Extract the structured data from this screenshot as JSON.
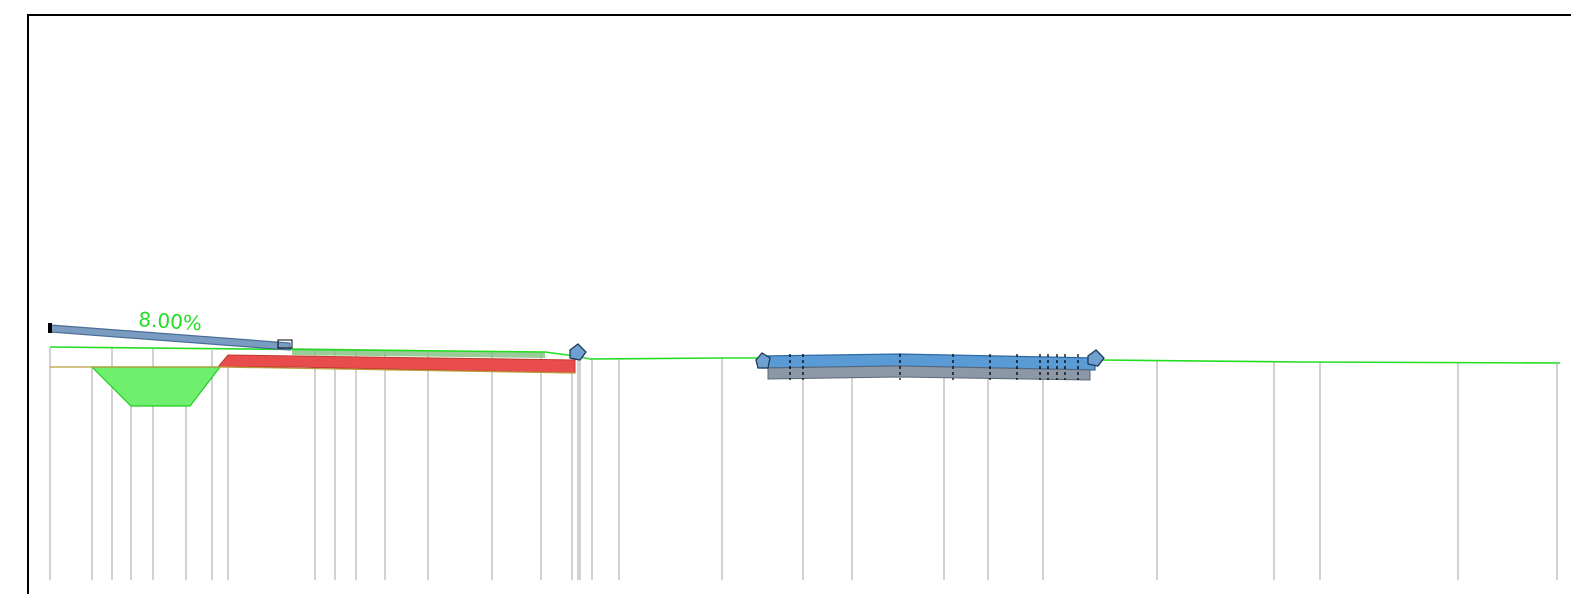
{
  "drawing": {
    "background": "#ffffff",
    "frame_color": "#000000",
    "stations_color": "#b5b5b5",
    "ground_color": "#22dd22",
    "pavement_color": "#5b9bd5",
    "fill_color": "#e84c4c",
    "ditch_fill_color": "#6ef06e"
  },
  "annotations": {
    "slope_label": "8.00%"
  }
}
